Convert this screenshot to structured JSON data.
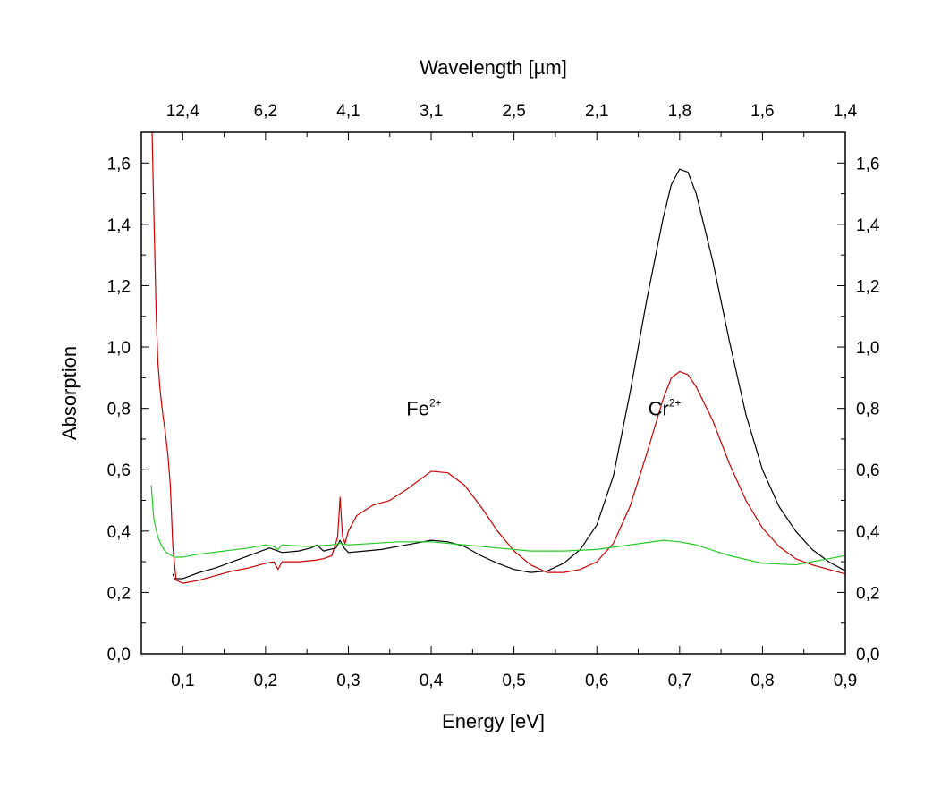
{
  "chart_data": {
    "type": "line",
    "xlabel": "Energy [eV]",
    "ylabel": "Absorption",
    "top_xlabel": "Wavelength [µm]",
    "xlim": [
      0.05,
      0.9
    ],
    "ylim": [
      0.0,
      1.7
    ],
    "x_ticks": [
      {
        "value": 0.1,
        "label": "0,1"
      },
      {
        "value": 0.2,
        "label": "0,2"
      },
      {
        "value": 0.3,
        "label": "0,3"
      },
      {
        "value": 0.4,
        "label": "0,4"
      },
      {
        "value": 0.5,
        "label": "0,5"
      },
      {
        "value": 0.6,
        "label": "0,6"
      },
      {
        "value": 0.7,
        "label": "0,7"
      },
      {
        "value": 0.8,
        "label": "0,8"
      },
      {
        "value": 0.9,
        "label": "0,9"
      }
    ],
    "y_ticks": [
      {
        "value": 0.0,
        "label": "0,0"
      },
      {
        "value": 0.2,
        "label": "0,2"
      },
      {
        "value": 0.4,
        "label": "0,4"
      },
      {
        "value": 0.6,
        "label": "0,6"
      },
      {
        "value": 0.8,
        "label": "0,8"
      },
      {
        "value": 1.0,
        "label": "1,0"
      },
      {
        "value": 1.2,
        "label": "1,2"
      },
      {
        "value": 1.4,
        "label": "1,4"
      },
      {
        "value": 1.6,
        "label": "1,6"
      }
    ],
    "top_ticks": [
      {
        "value": 0.1,
        "label": "12,4"
      },
      {
        "value": 0.2,
        "label": "6,2"
      },
      {
        "value": 0.3,
        "label": "4,1"
      },
      {
        "value": 0.4,
        "label": "3,1"
      },
      {
        "value": 0.5,
        "label": "2,5"
      },
      {
        "value": 0.6,
        "label": "2,1"
      },
      {
        "value": 0.7,
        "label": "1,8"
      },
      {
        "value": 0.8,
        "label": "1,6"
      },
      {
        "value": 0.9,
        "label": "1,4"
      }
    ],
    "annotations": [
      {
        "base": "Fe",
        "sup": "2+",
        "x": 0.37,
        "y": 0.8
      },
      {
        "base": "Cr",
        "sup": "2+",
        "x": 0.662,
        "y": 0.8
      }
    ],
    "series": [
      {
        "color": "#000000",
        "x": [
          0.088,
          0.09,
          0.1,
          0.11,
          0.12,
          0.14,
          0.16,
          0.18,
          0.195,
          0.205,
          0.21,
          0.215,
          0.22,
          0.24,
          0.255,
          0.262,
          0.27,
          0.285,
          0.29,
          0.295,
          0.3,
          0.32,
          0.34,
          0.36,
          0.38,
          0.4,
          0.42,
          0.44,
          0.46,
          0.48,
          0.5,
          0.52,
          0.54,
          0.56,
          0.58,
          0.6,
          0.62,
          0.64,
          0.66,
          0.68,
          0.69,
          0.7,
          0.71,
          0.72,
          0.74,
          0.76,
          0.78,
          0.8,
          0.82,
          0.84,
          0.86,
          0.88,
          0.9
        ],
        "y": [
          0.26,
          0.245,
          0.245,
          0.255,
          0.265,
          0.28,
          0.3,
          0.32,
          0.335,
          0.345,
          0.34,
          0.335,
          0.33,
          0.335,
          0.345,
          0.355,
          0.335,
          0.345,
          0.37,
          0.345,
          0.33,
          0.335,
          0.34,
          0.35,
          0.36,
          0.37,
          0.365,
          0.35,
          0.32,
          0.295,
          0.275,
          0.265,
          0.27,
          0.295,
          0.34,
          0.42,
          0.58,
          0.85,
          1.15,
          1.42,
          1.53,
          1.58,
          1.57,
          1.5,
          1.28,
          1.02,
          0.78,
          0.6,
          0.48,
          0.4,
          0.34,
          0.3,
          0.27
        ]
      },
      {
        "color": "#cc0000",
        "x": [
          0.063,
          0.065,
          0.068,
          0.07,
          0.073,
          0.076,
          0.079,
          0.082,
          0.085,
          0.088,
          0.092,
          0.1,
          0.12,
          0.14,
          0.16,
          0.18,
          0.2,
          0.21,
          0.215,
          0.22,
          0.24,
          0.26,
          0.27,
          0.28,
          0.287,
          0.29,
          0.293,
          0.296,
          0.3,
          0.31,
          0.33,
          0.35,
          0.37,
          0.39,
          0.4,
          0.42,
          0.44,
          0.46,
          0.48,
          0.5,
          0.52,
          0.54,
          0.56,
          0.58,
          0.6,
          0.62,
          0.64,
          0.66,
          0.68,
          0.69,
          0.7,
          0.71,
          0.72,
          0.74,
          0.76,
          0.78,
          0.8,
          0.82,
          0.84,
          0.86,
          0.88,
          0.9
        ],
        "y": [
          1.7,
          1.45,
          1.1,
          0.95,
          0.85,
          0.78,
          0.72,
          0.65,
          0.55,
          0.35,
          0.24,
          0.23,
          0.24,
          0.255,
          0.27,
          0.28,
          0.295,
          0.3,
          0.275,
          0.3,
          0.3,
          0.305,
          0.31,
          0.32,
          0.38,
          0.51,
          0.38,
          0.36,
          0.4,
          0.45,
          0.485,
          0.5,
          0.535,
          0.575,
          0.595,
          0.59,
          0.55,
          0.48,
          0.4,
          0.335,
          0.29,
          0.265,
          0.265,
          0.275,
          0.3,
          0.36,
          0.48,
          0.65,
          0.83,
          0.9,
          0.92,
          0.91,
          0.87,
          0.76,
          0.62,
          0.5,
          0.41,
          0.35,
          0.31,
          0.29,
          0.275,
          0.26
        ]
      },
      {
        "color": "#22cc22",
        "x": [
          0.062,
          0.065,
          0.07,
          0.075,
          0.08,
          0.09,
          0.1,
          0.12,
          0.15,
          0.18,
          0.2,
          0.21,
          0.215,
          0.22,
          0.25,
          0.28,
          0.29,
          0.3,
          0.33,
          0.36,
          0.4,
          0.44,
          0.48,
          0.52,
          0.56,
          0.6,
          0.64,
          0.68,
          0.7,
          0.72,
          0.76,
          0.8,
          0.84,
          0.86,
          0.88,
          0.9
        ],
        "y": [
          0.55,
          0.44,
          0.38,
          0.35,
          0.33,
          0.315,
          0.315,
          0.325,
          0.335,
          0.345,
          0.355,
          0.35,
          0.34,
          0.355,
          0.35,
          0.355,
          0.36,
          0.355,
          0.36,
          0.365,
          0.365,
          0.355,
          0.345,
          0.335,
          0.335,
          0.34,
          0.355,
          0.37,
          0.365,
          0.355,
          0.32,
          0.295,
          0.29,
          0.3,
          0.31,
          0.32
        ]
      }
    ]
  }
}
